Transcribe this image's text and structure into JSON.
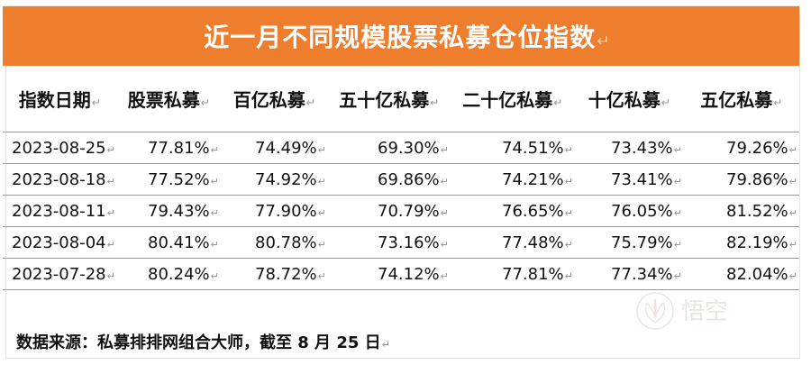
{
  "title": "近一月不同规模股票私募仓位指数",
  "paragraph_mark": "↵",
  "table": {
    "headers": [
      "指数日期",
      "股票私募",
      "百亿私募",
      "五十亿私募",
      "二十亿私募",
      "十亿私募",
      "五亿私募"
    ],
    "rows": [
      [
        "2023-08-25",
        "77.81%",
        "74.49%",
        "69.30%",
        "74.51%",
        "73.43%",
        "79.26%"
      ],
      [
        "2023-08-18",
        "77.52%",
        "74.92%",
        "69.86%",
        "74.21%",
        "73.41%",
        "79.86%"
      ],
      [
        "2023-08-11",
        "79.43%",
        "77.90%",
        "70.79%",
        "76.65%",
        "76.05%",
        "81.52%"
      ],
      [
        "2023-08-04",
        "80.41%",
        "80.78%",
        "73.16%",
        "77.48%",
        "75.79%",
        "82.19%"
      ],
      [
        "2023-07-28",
        "80.24%",
        "78.72%",
        "74.12%",
        "77.81%",
        "77.34%",
        "82.04%"
      ]
    ]
  },
  "footer": {
    "source": "数据来源：私募排排网组合大师，截至 8 月 25 日"
  },
  "colors": {
    "title_background": "#ee7e2e",
    "title_text": "#ffffff",
    "rule": "#9a9a9a"
  },
  "watermark": {
    "icon": "lotus-logo-icon",
    "text": "悟空"
  }
}
